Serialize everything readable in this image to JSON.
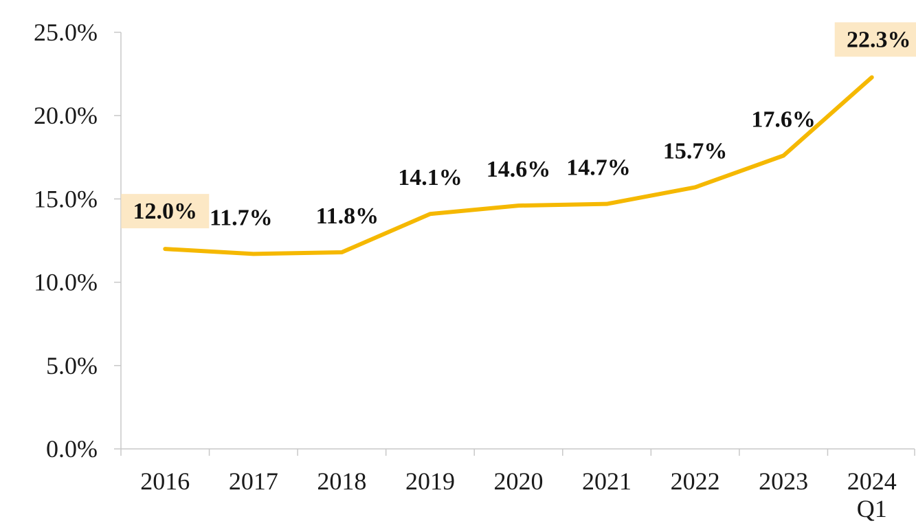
{
  "chart_data": {
    "type": "line",
    "title": "",
    "xlabel": "",
    "ylabel": "",
    "categories": [
      [
        "2016"
      ],
      [
        "2017"
      ],
      [
        "2018"
      ],
      [
        "2019"
      ],
      [
        "2020"
      ],
      [
        "2021"
      ],
      [
        "2022"
      ],
      [
        "2023"
      ],
      [
        "2024",
        "Q1"
      ]
    ],
    "series": [
      {
        "values": [
          12.0,
          11.7,
          11.8,
          14.1,
          14.6,
          14.7,
          15.7,
          17.6,
          22.3
        ],
        "labels": [
          "12.0%",
          "11.7%",
          "11.8%",
          "14.1%",
          "14.6%",
          "14.7%",
          "15.7%",
          "17.6%",
          "22.3%"
        ],
        "highlighted_labels": [
          0,
          8
        ],
        "color": "#F5B800",
        "highlight_color": "#FCE8C5"
      }
    ],
    "yticks": [
      0,
      5,
      10,
      15,
      20,
      25
    ],
    "ytick_labels": [
      "0.0%",
      "5.0%",
      "10.0%",
      "15.0%",
      "20.0%",
      "25.0%"
    ],
    "ylim": [
      0,
      25
    ],
    "grid": false,
    "legend": "none"
  }
}
